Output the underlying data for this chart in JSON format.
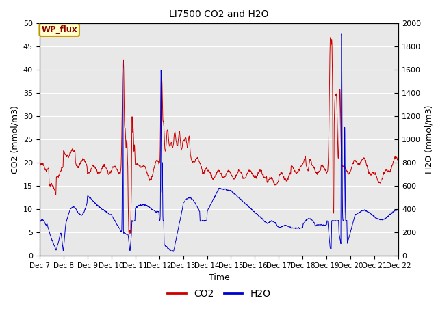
{
  "title": "LI7500 CO2 and H2O",
  "xlabel": "Time",
  "ylabel_left": "CO2 (mmol/m3)",
  "ylabel_right": "H2O (mmol/m3)",
  "xlim_days": [
    7,
    22
  ],
  "ylim_left": [
    0,
    50
  ],
  "ylim_right": [
    0,
    2000
  ],
  "yticks_left": [
    0,
    5,
    10,
    15,
    20,
    25,
    30,
    35,
    40,
    45,
    50
  ],
  "yticks_right": [
    0,
    200,
    400,
    600,
    800,
    1000,
    1200,
    1400,
    1600,
    1800,
    2000
  ],
  "co2_color": "#cc0000",
  "h2o_color": "#0000cc",
  "bg_color": "#e8e8e8",
  "annotation_text": "WP_flux",
  "annotation_bg": "#ffffcc",
  "annotation_border": "#cc9900",
  "legend_co2": "CO2",
  "legend_h2o": "H2O",
  "title_fontsize": 10,
  "axis_fontsize": 9,
  "tick_fontsize": 8
}
